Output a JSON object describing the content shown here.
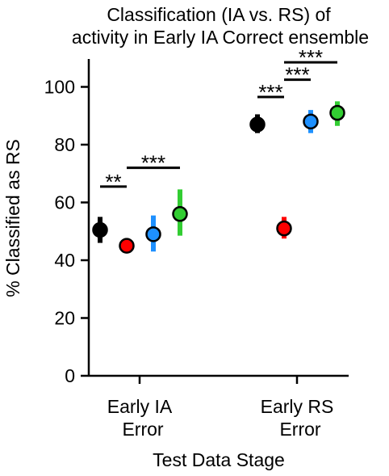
{
  "chart_data": {
    "type": "scatter",
    "title_line1": "Classification (IA vs. RS) of",
    "title_line2": "activity in Early IA Correct ensemble",
    "xlabel": "Test Data Stage",
    "ylabel": "% Classified as RS",
    "ylim": [
      0,
      110
    ],
    "yticks": [
      "0",
      "20",
      "40",
      "60",
      "80",
      "100"
    ],
    "groups": [
      {
        "line1": "Early IA",
        "line2": "Error"
      },
      {
        "line1": "Early RS",
        "line2": "Error"
      }
    ],
    "series": [
      {
        "color": "#000000",
        "points": [
          {
            "group": 0,
            "y": 50.5,
            "lo": 46,
            "hi": 55
          },
          {
            "group": 1,
            "y": 87,
            "lo": 84,
            "hi": 90.5
          }
        ]
      },
      {
        "color": "#ff0000",
        "points": [
          {
            "group": 0,
            "y": 45,
            "lo": 42.5,
            "hi": 47.5
          },
          {
            "group": 1,
            "y": 51,
            "lo": 47.5,
            "hi": 55
          }
        ]
      },
      {
        "color": "#1e90ff",
        "points": [
          {
            "group": 0,
            "y": 49,
            "lo": 43,
            "hi": 55.5
          },
          {
            "group": 1,
            "y": 88,
            "lo": 84,
            "hi": 92
          }
        ]
      },
      {
        "color": "#32cd32",
        "points": [
          {
            "group": 0,
            "y": 56,
            "lo": 48.5,
            "hi": 64.5
          },
          {
            "group": 1,
            "y": 91,
            "lo": 86.5,
            "hi": 95
          }
        ]
      }
    ],
    "annotations": [
      {
        "label": "**",
        "group": 0,
        "from": 0,
        "to": 1,
        "y": 65.5
      },
      {
        "label": "***",
        "group": 0,
        "from": 1,
        "to": 3,
        "y": 72
      },
      {
        "label": "***",
        "group": 1,
        "from": 0,
        "to": 1,
        "y": 96.5
      },
      {
        "label": "***",
        "group": 1,
        "from": 1,
        "to": 2,
        "y": 102.5
      },
      {
        "label": "***",
        "group": 1,
        "from": 1,
        "to": 3,
        "y": 108.5
      }
    ]
  }
}
